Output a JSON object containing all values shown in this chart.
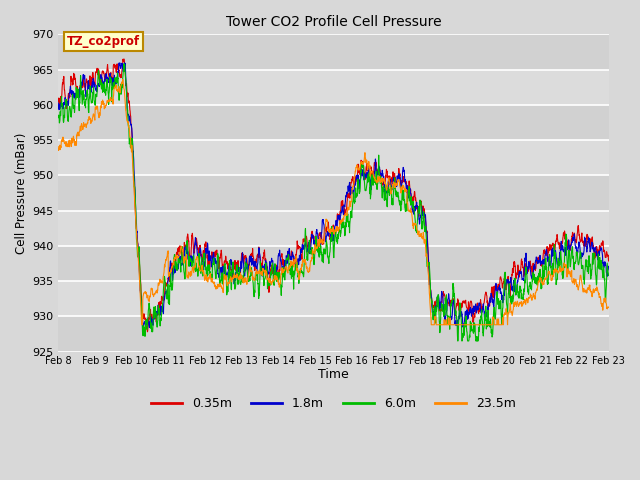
{
  "title": "Tower CO2 Profile Cell Pressure",
  "xlabel": "Time",
  "ylabel": "Cell Pressure (mBar)",
  "ylim": [
    925,
    970
  ],
  "xlim_days": [
    0,
    15
  ],
  "background_color": "#d8d8d8",
  "plot_bg_color": "#d8d8d8",
  "grid_color": "#b8b8b8",
  "annotation_text": "TZ_co2prof",
  "annotation_bg": "#ffffcc",
  "annotation_edge": "#bb8800",
  "annotation_color": "#cc0000",
  "series": [
    {
      "label": "0.35m",
      "color": "#dd0000"
    },
    {
      "label": "1.8m",
      "color": "#0000cc"
    },
    {
      "label": "6.0m",
      "color": "#00bb00"
    },
    {
      "label": "23.5m",
      "color": "#ff8800"
    }
  ],
  "xtick_labels": [
    "Feb 8",
    "Feb 9",
    "Feb 10",
    "Feb 11",
    "Feb 12",
    "Feb 13",
    "Feb 14",
    "Feb 15",
    "Feb 16",
    "Feb 17",
    "Feb 18",
    "Feb 19",
    "Feb 20",
    "Feb 21",
    "Feb 22",
    "Feb 23"
  ],
  "xtick_positions": [
    0,
    1,
    2,
    3,
    4,
    5,
    6,
    7,
    8,
    9,
    10,
    11,
    12,
    13,
    14,
    15
  ],
  "ytick_labels": [
    "925",
    "930",
    "935",
    "940",
    "945",
    "950",
    "955",
    "960",
    "965",
    "970"
  ],
  "ytick_positions": [
    925,
    930,
    935,
    940,
    945,
    950,
    955,
    960,
    965,
    970
  ]
}
